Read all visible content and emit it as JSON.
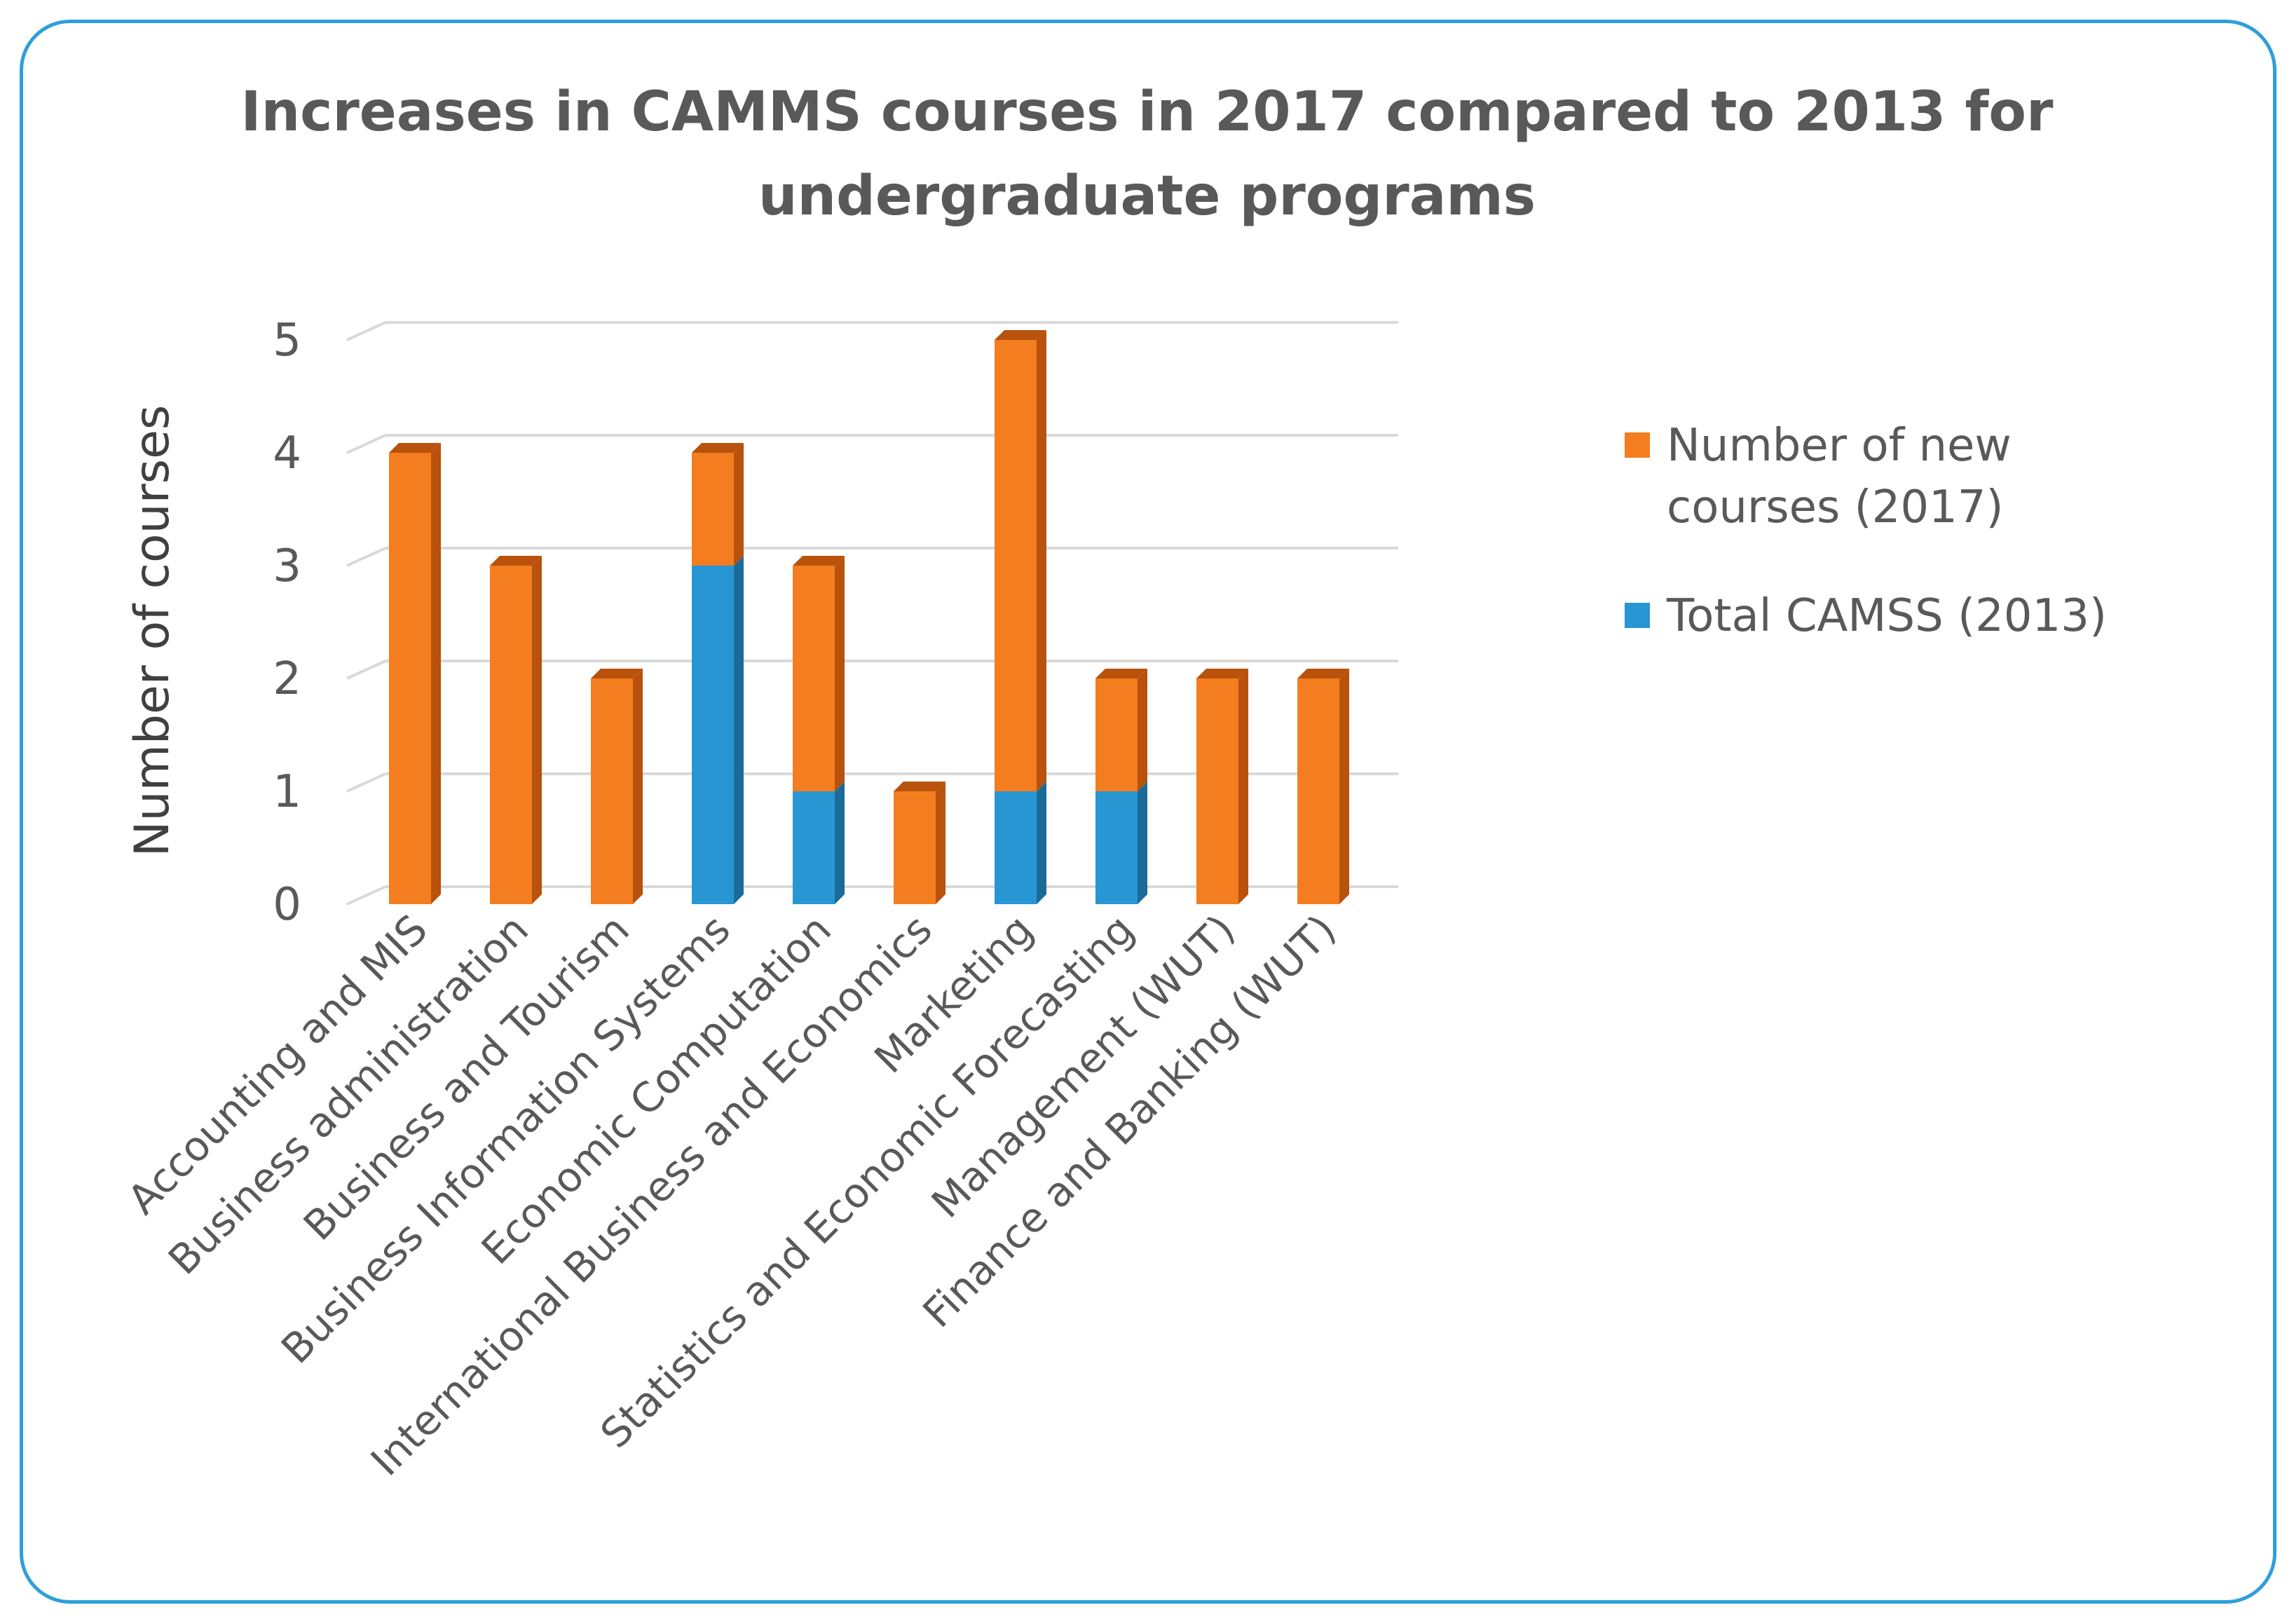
{
  "chart_data": {
    "type": "bar",
    "stacked": true,
    "three_d": true,
    "title": "Increases in CAMMS courses in 2017 compared to 2013 for undergraduate programs",
    "title_lines": [
      "Increases in CAMMS courses in 2017 compared  to 2013 for",
      "undergraduate programs"
    ],
    "xlabel": "",
    "ylabel": "Number of courses",
    "ylim": [
      0,
      5
    ],
    "yticks": [
      0,
      1,
      2,
      3,
      4,
      5
    ],
    "grid": true,
    "legend_position": "right",
    "categories": [
      "Accounting and MIS",
      "Business administration",
      "Business and Tourism",
      "Business Information Systems",
      "Economic Computation",
      "International Business and Economics",
      "Marketing",
      "Statistics and Economic Forecasting",
      "Management (WUT)",
      "Finance and Banking (WUT)"
    ],
    "series": [
      {
        "name": "Total CAMSS (2013)",
        "color": "#2896D3",
        "side_color": "#1B6B99",
        "values": [
          0,
          0,
          0,
          3,
          1,
          0,
          1,
          1,
          0,
          0
        ]
      },
      {
        "name": "Number of new courses (2017)",
        "color": "#F47D20",
        "side_color": "#B8520C",
        "values": [
          4,
          3,
          2,
          1,
          2,
          1,
          4,
          1,
          2,
          2
        ]
      }
    ],
    "legend": [
      {
        "label_lines": [
          "Number of new",
          "courses (2017)"
        ],
        "color": "#F47D20"
      },
      {
        "label_lines": [
          "Total CAMSS (2013)"
        ],
        "color": "#2896D3"
      }
    ]
  }
}
